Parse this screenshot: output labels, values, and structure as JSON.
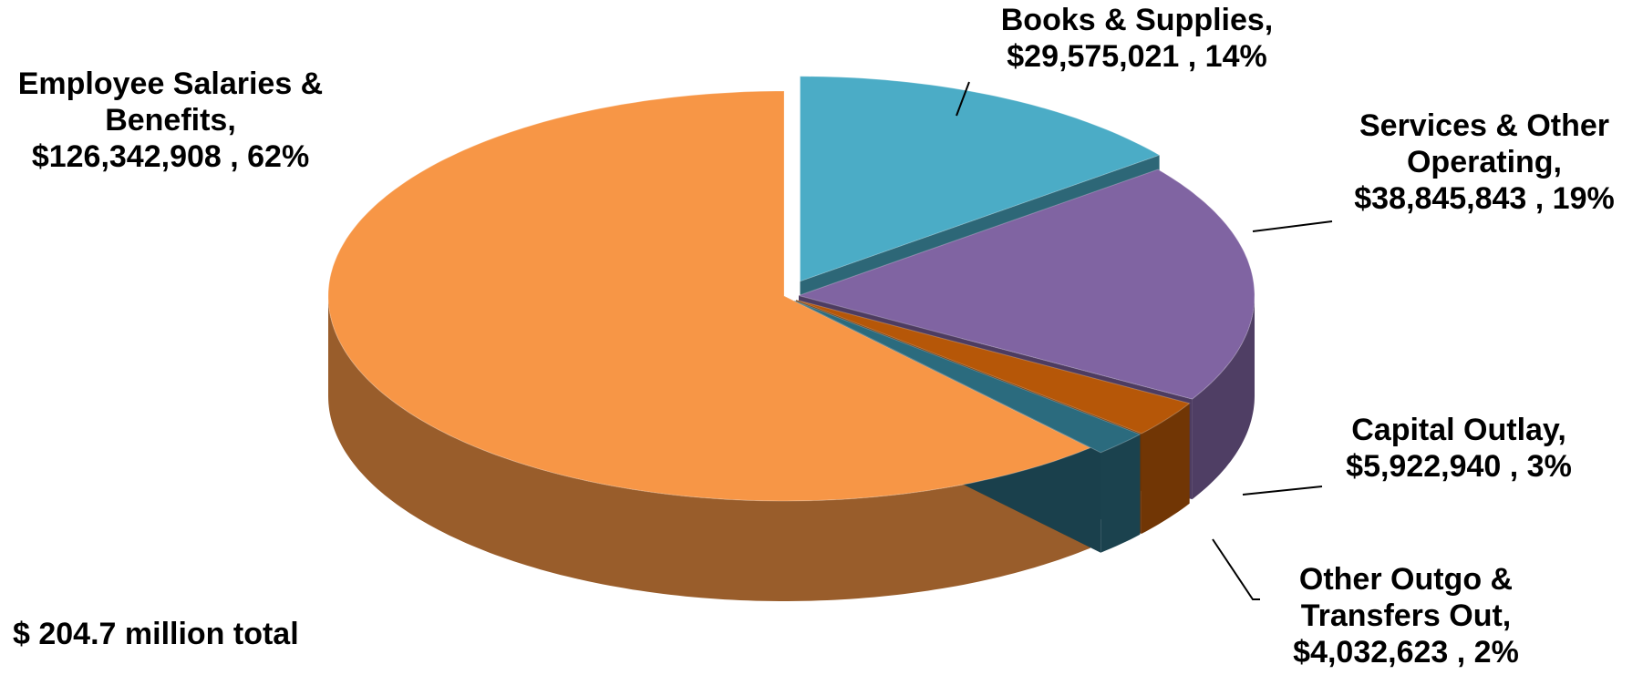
{
  "chart_data": {
    "type": "pie3d",
    "categories": [
      "Books & Supplies,",
      "Services & Other Operating,",
      "Capital Outlay,",
      "Other Outgo & Transfers Out,",
      "Employee Salaries & Benefits,"
    ],
    "values": [
      29575021,
      38845843,
      5922940,
      4032623,
      126342908
    ],
    "value_labels": [
      "$29,575,021 , 14%",
      "$38,845,843 , 19%",
      "$5,922,940 , 3%",
      "$4,032,623 , 2%",
      "$126,342,908 , 62%"
    ],
    "colors": [
      "#4bacc6",
      "#8064a2",
      "#b65708",
      "#2b6b7e",
      "#f79646"
    ],
    "annotation": "$ 204.7 million total"
  }
}
